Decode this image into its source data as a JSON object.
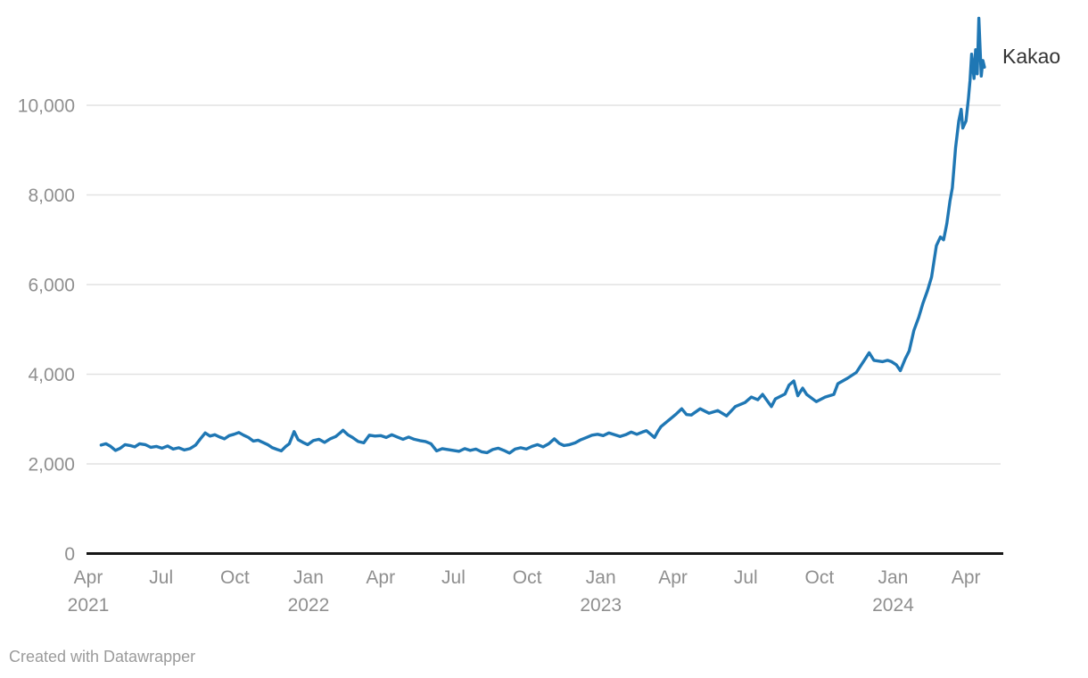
{
  "footer": {
    "attribution": "Created with Datawrapper"
  },
  "colors": {
    "line": "#1f77b4",
    "grid": "#e2e2e2",
    "axis": "#161616",
    "tick_text": "#8f8f8f",
    "footer_text": "#9b9b9b",
    "series_label_text": "#333333"
  },
  "chart_data": {
    "type": "line",
    "title": "",
    "xlabel": "",
    "ylabel": "",
    "legend_position": "direct-label-right",
    "grid": "horizontal",
    "x_unit": "days since epoch",
    "epoch": "2021-04-01",
    "x_range_days": [
      0,
      1122
    ],
    "ylim": [
      0,
      12050
    ],
    "y_ticks": [
      {
        "value": 0,
        "label": "0"
      },
      {
        "value": 2000,
        "label": "2,000"
      },
      {
        "value": 4000,
        "label": "4,000"
      },
      {
        "value": 6000,
        "label": "6,000"
      },
      {
        "value": 8000,
        "label": "8,000"
      },
      {
        "value": 10000,
        "label": "10,000"
      }
    ],
    "x_ticks": [
      {
        "day": 0,
        "label": "Apr",
        "year": "2021"
      },
      {
        "day": 91,
        "label": "Jul",
        "year": ""
      },
      {
        "day": 183,
        "label": "Oct",
        "year": ""
      },
      {
        "day": 275,
        "label": "Jan",
        "year": "2022"
      },
      {
        "day": 365,
        "label": "Apr",
        "year": ""
      },
      {
        "day": 456,
        "label": "Jul",
        "year": ""
      },
      {
        "day": 548,
        "label": "Oct",
        "year": ""
      },
      {
        "day": 640,
        "label": "Jan",
        "year": "2023"
      },
      {
        "day": 730,
        "label": "Apr",
        "year": ""
      },
      {
        "day": 821,
        "label": "Jul",
        "year": ""
      },
      {
        "day": 913,
        "label": "Oct",
        "year": ""
      },
      {
        "day": 1005,
        "label": "Jan",
        "year": "2024"
      },
      {
        "day": 1096,
        "label": "Apr",
        "year": ""
      }
    ],
    "series": [
      {
        "name": "Kakao",
        "points": [
          [
            16,
            2420
          ],
          [
            22,
            2450
          ],
          [
            28,
            2390
          ],
          [
            34,
            2300
          ],
          [
            40,
            2350
          ],
          [
            46,
            2430
          ],
          [
            52,
            2410
          ],
          [
            58,
            2380
          ],
          [
            64,
            2450
          ],
          [
            71,
            2430
          ],
          [
            78,
            2370
          ],
          [
            85,
            2390
          ],
          [
            92,
            2350
          ],
          [
            99,
            2400
          ],
          [
            106,
            2330
          ],
          [
            113,
            2360
          ],
          [
            120,
            2310
          ],
          [
            127,
            2340
          ],
          [
            134,
            2420
          ],
          [
            140,
            2560
          ],
          [
            146,
            2690
          ],
          [
            152,
            2620
          ],
          [
            158,
            2650
          ],
          [
            164,
            2600
          ],
          [
            170,
            2560
          ],
          [
            176,
            2630
          ],
          [
            182,
            2660
          ],
          [
            188,
            2700
          ],
          [
            194,
            2640
          ],
          [
            200,
            2590
          ],
          [
            206,
            2510
          ],
          [
            212,
            2530
          ],
          [
            218,
            2480
          ],
          [
            224,
            2430
          ],
          [
            230,
            2360
          ],
          [
            236,
            2320
          ],
          [
            241,
            2290
          ],
          [
            246,
            2380
          ],
          [
            251,
            2450
          ],
          [
            257,
            2720
          ],
          [
            262,
            2540
          ],
          [
            268,
            2480
          ],
          [
            274,
            2430
          ],
          [
            281,
            2520
          ],
          [
            288,
            2550
          ],
          [
            295,
            2480
          ],
          [
            302,
            2560
          ],
          [
            309,
            2610
          ],
          [
            315,
            2700
          ],
          [
            318,
            2750
          ],
          [
            324,
            2650
          ],
          [
            330,
            2590
          ],
          [
            337,
            2500
          ],
          [
            344,
            2470
          ],
          [
            351,
            2640
          ],
          [
            358,
            2620
          ],
          [
            365,
            2630
          ],
          [
            372,
            2590
          ],
          [
            379,
            2650
          ],
          [
            386,
            2600
          ],
          [
            393,
            2550
          ],
          [
            400,
            2600
          ],
          [
            407,
            2550
          ],
          [
            414,
            2520
          ],
          [
            421,
            2500
          ],
          [
            428,
            2450
          ],
          [
            435,
            2290
          ],
          [
            442,
            2340
          ],
          [
            449,
            2320
          ],
          [
            456,
            2300
          ],
          [
            463,
            2280
          ],
          [
            470,
            2340
          ],
          [
            477,
            2300
          ],
          [
            484,
            2330
          ],
          [
            491,
            2270
          ],
          [
            498,
            2250
          ],
          [
            505,
            2320
          ],
          [
            512,
            2350
          ],
          [
            519,
            2300
          ],
          [
            526,
            2240
          ],
          [
            533,
            2330
          ],
          [
            540,
            2360
          ],
          [
            547,
            2330
          ],
          [
            554,
            2390
          ],
          [
            561,
            2430
          ],
          [
            568,
            2380
          ],
          [
            575,
            2450
          ],
          [
            582,
            2560
          ],
          [
            588,
            2460
          ],
          [
            594,
            2410
          ],
          [
            601,
            2430
          ],
          [
            608,
            2470
          ],
          [
            615,
            2540
          ],
          [
            622,
            2590
          ],
          [
            629,
            2640
          ],
          [
            636,
            2660
          ],
          [
            643,
            2630
          ],
          [
            650,
            2690
          ],
          [
            657,
            2650
          ],
          [
            664,
            2610
          ],
          [
            671,
            2650
          ],
          [
            678,
            2710
          ],
          [
            685,
            2660
          ],
          [
            692,
            2710
          ],
          [
            697,
            2740
          ],
          [
            703,
            2650
          ],
          [
            707,
            2590
          ],
          [
            711,
            2720
          ],
          [
            715,
            2830
          ],
          [
            719,
            2890
          ],
          [
            723,
            2950
          ],
          [
            728,
            3020
          ],
          [
            734,
            3110
          ],
          [
            741,
            3230
          ],
          [
            747,
            3100
          ],
          [
            753,
            3090
          ],
          [
            764,
            3230
          ],
          [
            775,
            3130
          ],
          [
            786,
            3190
          ],
          [
            797,
            3070
          ],
          [
            808,
            3280
          ],
          [
            820,
            3370
          ],
          [
            828,
            3490
          ],
          [
            836,
            3430
          ],
          [
            842,
            3550
          ],
          [
            853,
            3280
          ],
          [
            858,
            3450
          ],
          [
            870,
            3560
          ],
          [
            875,
            3760
          ],
          [
            881,
            3850
          ],
          [
            886,
            3520
          ],
          [
            892,
            3690
          ],
          [
            897,
            3550
          ],
          [
            909,
            3390
          ],
          [
            920,
            3490
          ],
          [
            931,
            3550
          ],
          [
            936,
            3790
          ],
          [
            948,
            3910
          ],
          [
            959,
            4040
          ],
          [
            970,
            4340
          ],
          [
            975,
            4480
          ],
          [
            981,
            4310
          ],
          [
            992,
            4280
          ],
          [
            998,
            4310
          ],
          [
            1003,
            4280
          ],
          [
            1009,
            4210
          ],
          [
            1014,
            4080
          ],
          [
            1020,
            4340
          ],
          [
            1025,
            4520
          ],
          [
            1031,
            4980
          ],
          [
            1037,
            5270
          ],
          [
            1042,
            5570
          ],
          [
            1048,
            5870
          ],
          [
            1053,
            6170
          ],
          [
            1059,
            6870
          ],
          [
            1064,
            7060
          ],
          [
            1068,
            7000
          ],
          [
            1072,
            7360
          ],
          [
            1076,
            7860
          ],
          [
            1079,
            8160
          ],
          [
            1083,
            9050
          ],
          [
            1087,
            9650
          ],
          [
            1090,
            9910
          ],
          [
            1092,
            9490
          ],
          [
            1096,
            9650
          ],
          [
            1099,
            10150
          ],
          [
            1101,
            10550
          ],
          [
            1103,
            11140
          ],
          [
            1106,
            10600
          ],
          [
            1108,
            11240
          ],
          [
            1110,
            10700
          ],
          [
            1112,
            11940
          ],
          [
            1115,
            10650
          ],
          [
            1117,
            11000
          ],
          [
            1119,
            10850
          ]
        ],
        "label": "Kakao",
        "color": "#1f77b4"
      }
    ]
  }
}
